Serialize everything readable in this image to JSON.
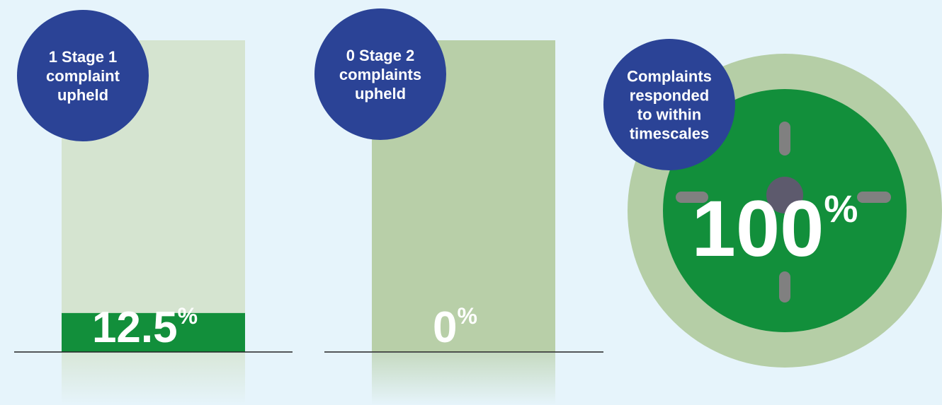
{
  "unit": "%",
  "range": [
    0,
    100
  ],
  "panels": [
    {
      "label": [
        "1 Stage 1",
        "complaint",
        "upheld"
      ],
      "value": 12.5
    },
    {
      "label": [
        "0 Stage 2",
        "complaints",
        "upheld"
      ],
      "value": 0
    },
    {
      "label": [
        "Complaints",
        "responded",
        "to within",
        "timescales"
      ],
      "value": 100
    }
  ]
}
